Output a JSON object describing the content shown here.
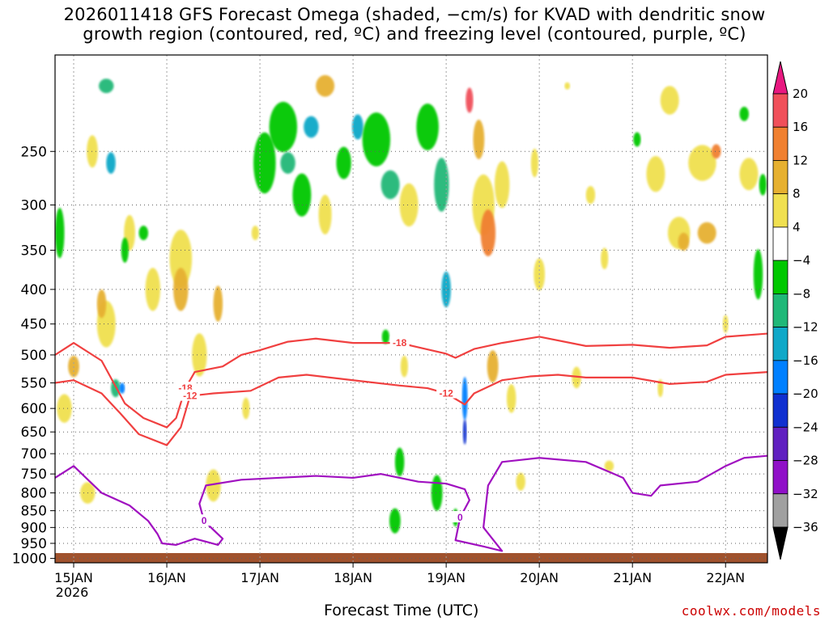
{
  "title_line1": "2026011418 GFS Forecast Omega (shaded, −cm/s) for KVAD with dendritic snow",
  "title_line2": "growth region (contoured, red, ºC) and freezing level (contoured, purple, ºC)",
  "credit": "coolwx.com/models",
  "chart_data": {
    "type": "heatmap",
    "xlabel": "Forecast Time (UTC)",
    "ylabel": "",
    "x_tick_labels": [
      "15JAN",
      "16JAN",
      "17JAN",
      "18JAN",
      "19JAN",
      "20JAN",
      "21JAN",
      "22JAN"
    ],
    "x_year_label": "2026",
    "x_range_days": [
      -0.2,
      7.45
    ],
    "y_tick_labels": [
      "250",
      "300",
      "350",
      "400",
      "450",
      "500",
      "550",
      "600",
      "650",
      "700",
      "750",
      "800",
      "850",
      "900",
      "950",
      "1000"
    ],
    "y_range_hPa": [
      180,
      1015
    ],
    "y_scale": "log",
    "grid": true,
    "colorbar": {
      "labels": [
        "20",
        "16",
        "12",
        "8",
        "4",
        "−4",
        "−8",
        "−12",
        "−16",
        "−20",
        "−24",
        "−28",
        "−32",
        "−36"
      ],
      "colors": [
        "#f0505a",
        "#f08030",
        "#e6b030",
        "#f0e050",
        "#ffffff",
        "#00c800",
        "#20b878",
        "#10a8c8",
        "#0080ff",
        "#1030d0",
        "#6020c0",
        "#9010c8",
        "#a0a0a0"
      ],
      "top_arrow_color": "#e81880",
      "bottom_arrow_color": "#000000"
    },
    "contours": [
      {
        "label": "-18",
        "color": "#f04040",
        "points": [
          [
            -0.2,
            500
          ],
          [
            0.0,
            480
          ],
          [
            0.3,
            510
          ],
          [
            0.55,
            590
          ],
          [
            0.75,
            620
          ],
          [
            1.0,
            640
          ],
          [
            1.1,
            620
          ],
          [
            1.2,
            560
          ],
          [
            1.3,
            530
          ],
          [
            1.6,
            520
          ],
          [
            1.8,
            500
          ],
          [
            2.0,
            492
          ],
          [
            2.3,
            478
          ],
          [
            2.6,
            473
          ],
          [
            3.0,
            480
          ],
          [
            3.5,
            480
          ],
          [
            4.0,
            498
          ],
          [
            4.1,
            505
          ],
          [
            4.3,
            490
          ],
          [
            4.6,
            480
          ],
          [
            5.0,
            470
          ],
          [
            5.5,
            485
          ],
          [
            6.0,
            483
          ],
          [
            6.4,
            488
          ],
          [
            6.8,
            484
          ],
          [
            7.0,
            470
          ],
          [
            7.45,
            465
          ]
        ]
      },
      {
        "label": "-12",
        "color": "#f04040",
        "points": [
          [
            -0.2,
            550
          ],
          [
            0.0,
            545
          ],
          [
            0.3,
            570
          ],
          [
            0.5,
            610
          ],
          [
            0.7,
            655
          ],
          [
            1.0,
            680
          ],
          [
            1.15,
            640
          ],
          [
            1.25,
            575
          ],
          [
            1.5,
            570
          ],
          [
            1.9,
            565
          ],
          [
            2.2,
            540
          ],
          [
            2.5,
            535
          ],
          [
            3.0,
            545
          ],
          [
            3.5,
            555
          ],
          [
            3.8,
            560
          ],
          [
            4.0,
            570
          ],
          [
            4.2,
            592
          ],
          [
            4.3,
            570
          ],
          [
            4.6,
            545
          ],
          [
            4.9,
            538
          ],
          [
            5.2,
            535
          ],
          [
            5.5,
            540
          ],
          [
            6.0,
            540
          ],
          [
            6.4,
            552
          ],
          [
            6.8,
            548
          ],
          [
            7.0,
            535
          ],
          [
            7.45,
            530
          ]
        ]
      },
      {
        "label": "0",
        "color": "#a010c0",
        "points": [
          [
            -0.2,
            760
          ],
          [
            0.0,
            730
          ],
          [
            0.3,
            800
          ],
          [
            0.6,
            835
          ],
          [
            0.8,
            880
          ],
          [
            0.9,
            920
          ],
          [
            0.95,
            950
          ],
          [
            1.1,
            955
          ],
          [
            1.3,
            935
          ],
          [
            1.55,
            955
          ],
          [
            1.6,
            935
          ],
          [
            1.4,
            880
          ],
          [
            1.35,
            830
          ],
          [
            1.42,
            780
          ],
          [
            1.8,
            765
          ],
          [
            2.2,
            760
          ],
          [
            2.6,
            755
          ],
          [
            3.0,
            760
          ],
          [
            3.3,
            750
          ],
          [
            3.7,
            770
          ],
          [
            4.0,
            775
          ],
          [
            4.2,
            790
          ],
          [
            4.25,
            820
          ],
          [
            4.15,
            870
          ],
          [
            4.1,
            940
          ],
          [
            4.4,
            960
          ],
          [
            4.6,
            975
          ],
          [
            4.4,
            900
          ],
          [
            4.45,
            780
          ],
          [
            4.6,
            720
          ],
          [
            5.0,
            710
          ],
          [
            5.5,
            720
          ],
          [
            5.9,
            760
          ],
          [
            6.0,
            800
          ],
          [
            6.2,
            808
          ],
          [
            6.3,
            780
          ],
          [
            6.7,
            770
          ],
          [
            7.0,
            730
          ],
          [
            7.2,
            710
          ],
          [
            7.45,
            705
          ]
        ]
      }
    ]
  }
}
